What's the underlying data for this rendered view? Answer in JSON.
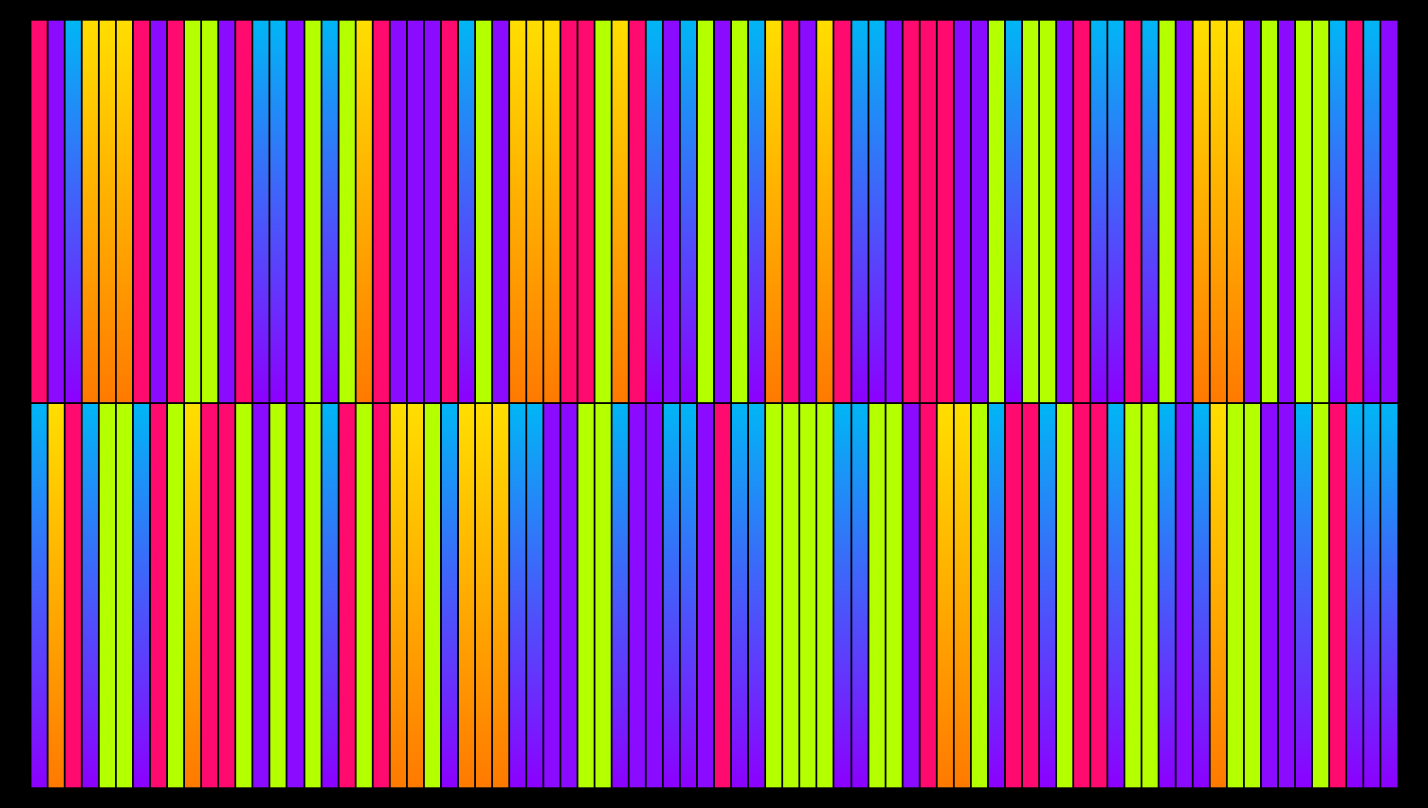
{
  "palette": {
    "p": "#ff0a6e",
    "b": "#00b6f5",
    "o": "#ffde00",
    "v": "#8a0bff",
    "l": "#b4ff00",
    "background": "#000000"
  },
  "rows": [
    "pvbooopvpllvpbbvlblopvvvpblvooopplopbvblvlbopvopbbvpppvvlbllvpbbpblvooovlvllbpbvplllppllvbooppvbobpb",
    "bopbllbplopplvlvlbplpoolbooobbvvllbvvbbvpbbllllbbllvpoolbppblppbllbvbollvvblpbbbblpbvbllvllpvollpbvvlolo"
  ]
}
